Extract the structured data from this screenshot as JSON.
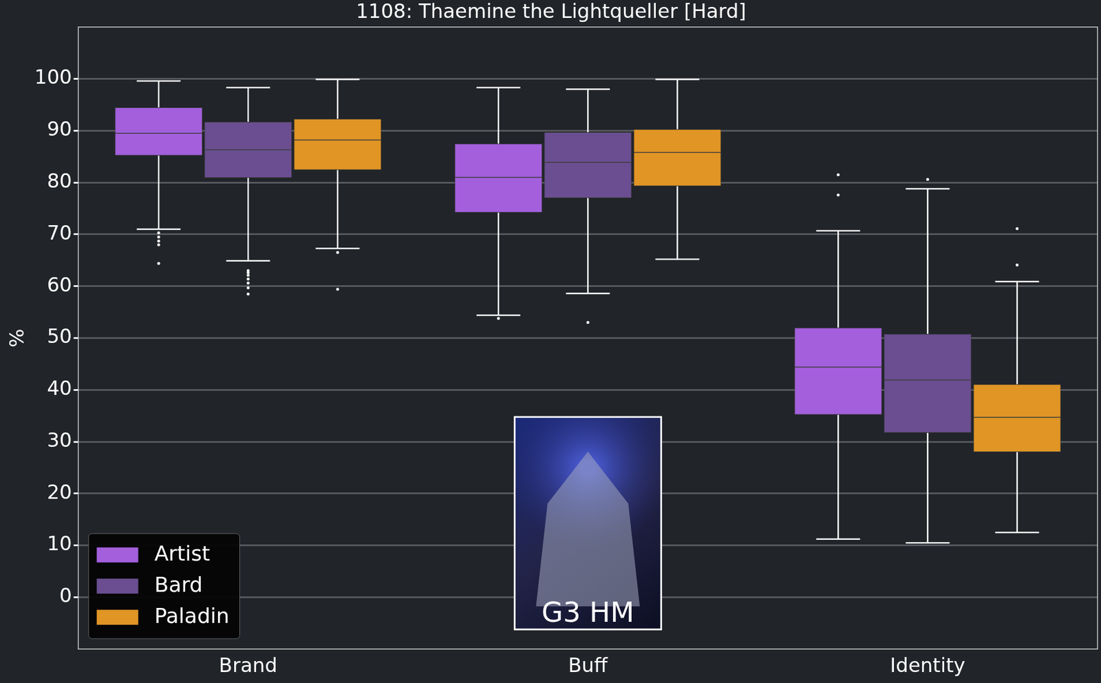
{
  "chart_data": {
    "type": "boxplot",
    "title": "1108: Thaemine the Lightqueller [Hard]",
    "ylabel": "%",
    "categories": [
      "Brand",
      "Buff",
      "Identity"
    ],
    "series": [
      {
        "name": "Artist",
        "color": "#a35fdc",
        "values": [
          {
            "whislo": 71.0,
            "q1": 85.2,
            "med": 89.5,
            "q3": 94.5,
            "whishi": 99.6,
            "fliers": [
              70.3,
              69.5,
              68.7,
              68.0,
              64.4
            ]
          },
          {
            "whislo": 54.4,
            "q1": 74.2,
            "med": 81.0,
            "q3": 87.5,
            "whishi": 98.3,
            "fliers": [
              53.8
            ]
          },
          {
            "whislo": 11.2,
            "q1": 35.2,
            "med": 44.4,
            "q3": 52.0,
            "whishi": 70.7,
            "fliers": [
              81.5,
              77.6
            ]
          }
        ]
      },
      {
        "name": "Bard",
        "color": "#6a4e91",
        "values": [
          {
            "whislo": 64.9,
            "q1": 80.9,
            "med": 86.3,
            "q3": 91.7,
            "whishi": 98.3,
            "fliers": [
              63.0,
              62.6,
              62.1,
              61.4,
              60.6,
              59.7,
              58.5
            ]
          },
          {
            "whislo": 58.6,
            "q1": 77.0,
            "med": 83.9,
            "q3": 89.7,
            "whishi": 98.0,
            "fliers": [
              53.0
            ]
          },
          {
            "whislo": 10.5,
            "q1": 31.7,
            "med": 41.9,
            "q3": 50.8,
            "whishi": 78.8,
            "fliers": [
              80.6
            ]
          }
        ]
      },
      {
        "name": "Paladin",
        "color": "#e09525",
        "values": [
          {
            "whislo": 67.3,
            "q1": 82.4,
            "med": 88.2,
            "q3": 92.3,
            "whishi": 99.9,
            "fliers": [
              66.5,
              59.4
            ]
          },
          {
            "whislo": 65.2,
            "q1": 79.3,
            "med": 85.8,
            "q3": 90.3,
            "whishi": 99.9,
            "fliers": []
          },
          {
            "whislo": 12.5,
            "q1": 28.0,
            "med": 34.7,
            "q3": 41.1,
            "whishi": 60.9,
            "fliers": [
              71.1,
              64.1
            ]
          }
        ]
      }
    ],
    "ylim": [
      -10,
      110
    ],
    "yticks": [
      0,
      10,
      20,
      30,
      40,
      50,
      60,
      70,
      80,
      90,
      100
    ],
    "grid": true,
    "legend": "lower left",
    "annotations": [
      "G3 HM"
    ]
  }
}
